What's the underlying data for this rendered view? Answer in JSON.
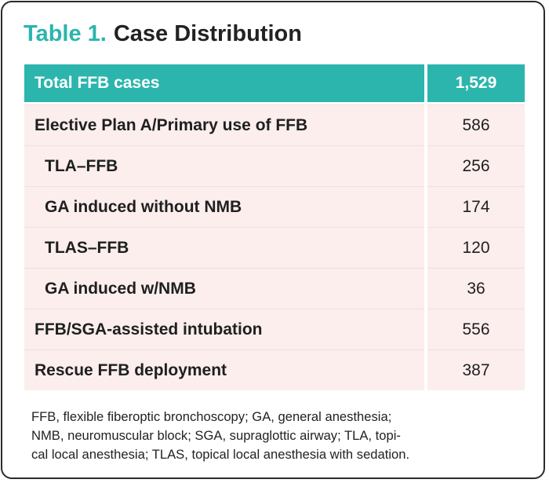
{
  "title": {
    "prefix": "Table 1.",
    "text": "Case Distribution"
  },
  "header": {
    "label": "Total FFB cases",
    "value": "1,529"
  },
  "rows": [
    {
      "label": "Elective Plan A/Primary use of FFB",
      "value": "586"
    },
    {
      "label": "TLA–FFB",
      "value": "256"
    },
    {
      "label": "GA induced without NMB",
      "value": "174"
    },
    {
      "label": "TLAS–FFB",
      "value": "120"
    },
    {
      "label": "GA induced w/NMB",
      "value": "36"
    },
    {
      "label": "FFB/SGA-assisted intubation",
      "value": "556"
    },
    {
      "label": "Rescue FFB deployment",
      "value": "387"
    }
  ],
  "footnote": {
    "line1": "FFB, flexible fiberoptic bronchoscopy; GA, general anesthesia;",
    "line2": "NMB, neuromuscular block; SGA, supraglottic airway; TLA, topi-",
    "line3": "cal local anesthesia; TLAS, topical local anesthesia with sedation."
  },
  "colors": {
    "accent": "#2bb5ad",
    "row_background": "#fbeeed",
    "border": "#2b2b2b"
  }
}
